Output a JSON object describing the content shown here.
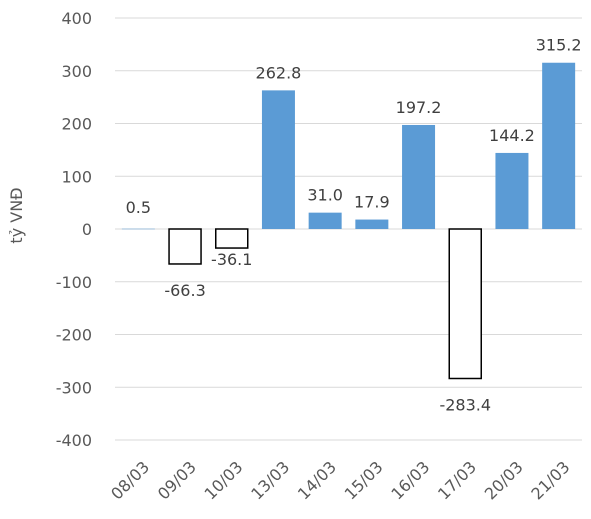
{
  "chart_data": {
    "type": "bar",
    "categories": [
      "08/03",
      "09/03",
      "10/03",
      "13/03",
      "14/03",
      "15/03",
      "16/03",
      "17/03",
      "20/03",
      "21/03"
    ],
    "values": [
      0.5,
      -66.3,
      -36.1,
      262.8,
      31.0,
      17.9,
      197.2,
      -283.4,
      144.2,
      315.2
    ],
    "data_labels": [
      "0.5",
      "-66.3",
      "-36.1",
      "262.8",
      "31.0",
      "17.9",
      "197.2",
      "-283.4",
      "144.2",
      "315.2"
    ],
    "ylabel": "tỷ VNĐ",
    "ylim": [
      -400,
      400
    ],
    "yticks": [
      400,
      300,
      200,
      100,
      0,
      -100,
      -200,
      -300,
      -400
    ],
    "grid": true,
    "colors": {
      "positive": "#5b9bd5",
      "negative_fill": "#ffffff",
      "negative_stroke": "#000000",
      "grid": "#d9d9d9"
    }
  }
}
